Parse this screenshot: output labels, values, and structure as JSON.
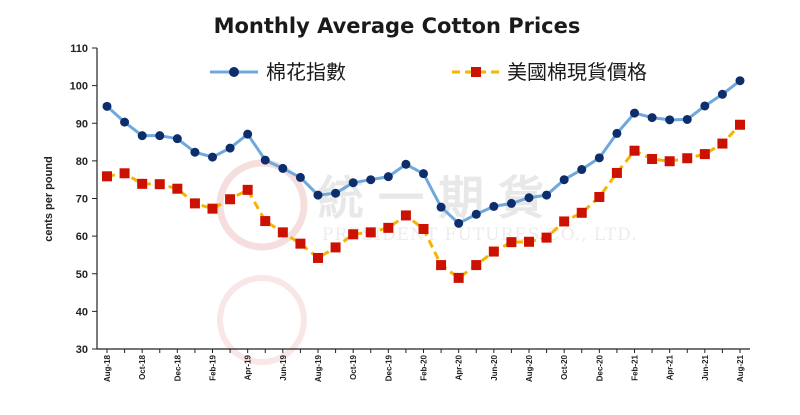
{
  "chart_data": {
    "type": "line",
    "title": "Monthly Average Cotton Prices",
    "ylabel": "cents per pound",
    "xlabel": "",
    "ylim": [
      30,
      110
    ],
    "yticks": [
      30,
      40,
      50,
      60,
      70,
      80,
      90,
      100,
      110
    ],
    "grid": false,
    "legend_position": "top",
    "categories": [
      "Aug-18",
      "Sep-18",
      "Oct-18",
      "Nov-18",
      "Dec-18",
      "Jan-19",
      "Feb-19",
      "Mar-19",
      "Apr-19",
      "May-19",
      "Jun-19",
      "Jul-19",
      "Aug-19",
      "Sep-19",
      "Oct-19",
      "Nov-19",
      "Dec-19",
      "Jan-20",
      "Feb-20",
      "Mar-20",
      "Apr-20",
      "May-20",
      "Jun-20",
      "Jul-20",
      "Aug-20",
      "Sep-20",
      "Oct-20",
      "Nov-20",
      "Dec-20",
      "Jan-21",
      "Feb-21",
      "Mar-21",
      "Apr-21",
      "May-21",
      "Jun-21",
      "Jul-21",
      "Aug-21"
    ],
    "tick_labels": [
      "Aug-18",
      "Oct-18",
      "Dec-18",
      "Feb-19",
      "Apr-19",
      "Jun-19",
      "Aug-19",
      "Oct-19",
      "Dec-19",
      "Feb-20",
      "Apr-20",
      "Jun-20",
      "Aug-20",
      "Oct-20",
      "Dec-20",
      "Feb-21",
      "Apr-21",
      "Jun-21",
      "Aug-21"
    ],
    "series": [
      {
        "name": "棉花指數",
        "color": "#6fa8dc",
        "marker_color": "#0d2d6b",
        "marker": "circle",
        "values": [
          94.5,
          90.3,
          86.7,
          86.7,
          85.9,
          82.3,
          81.0,
          83.4,
          87.1,
          80.2,
          78.0,
          75.6,
          70.9,
          71.4,
          74.2,
          75.0,
          75.8,
          79.1,
          76.6,
          67.7,
          63.4,
          65.8,
          67.9,
          68.7,
          70.2,
          70.9,
          75.0,
          77.7,
          80.8,
          87.3,
          92.7,
          91.5,
          90.9,
          91.0,
          94.6,
          97.7,
          101.3
        ]
      },
      {
        "name": "美國棉現貨價格",
        "color": "#f4b400",
        "marker_color": "#cc1100",
        "marker": "square",
        "values": [
          75.9,
          76.7,
          73.9,
          73.8,
          72.6,
          68.7,
          67.3,
          69.8,
          72.3,
          64.0,
          61.0,
          58.0,
          54.2,
          57.0,
          60.5,
          61.0,
          62.2,
          65.5,
          61.9,
          52.3,
          48.9,
          52.3,
          55.9,
          58.4,
          58.5,
          59.6,
          63.9,
          66.2,
          70.4,
          76.8,
          82.7,
          80.5,
          79.9,
          80.7,
          81.8,
          84.6,
          89.6
        ]
      }
    ]
  },
  "watermark": {
    "main": "統一期貨",
    "sub": "PRESIDENT FUTURES CO., LTD."
  }
}
